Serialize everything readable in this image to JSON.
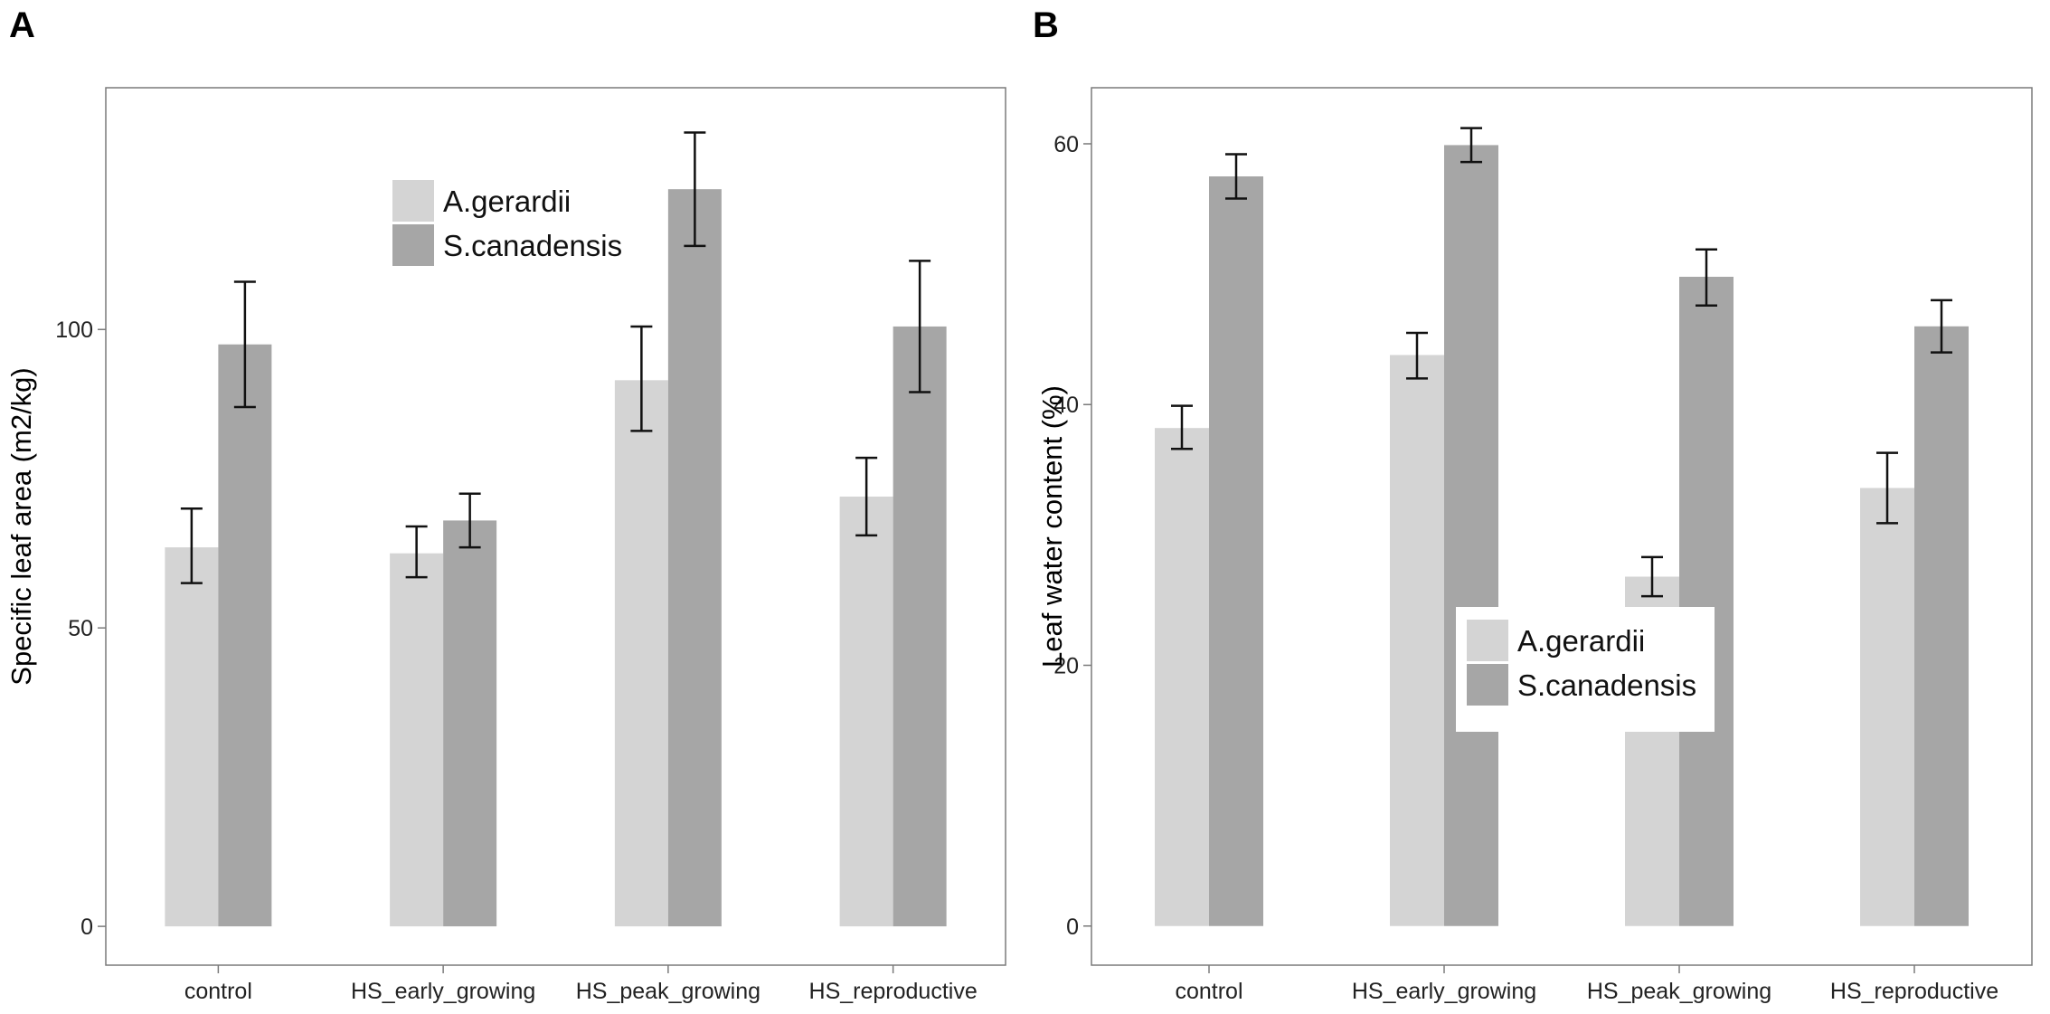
{
  "chart_data": [
    {
      "panel": "A",
      "type": "bar",
      "ylabel": "Specific leaf area (m2/kg)",
      "xlabel": "",
      "ylim": [
        -6.5,
        140.5
      ],
      "yticks": [
        0,
        50,
        100
      ],
      "grid": false,
      "legend_position": "top-center",
      "categories": [
        "control",
        "HS_early_growing",
        "HS_peak_growing",
        "HS_reproductive"
      ],
      "series": [
        {
          "name": "A.gerardii",
          "values": [
            63.5,
            62.5,
            91.5,
            72.0
          ],
          "err_low": [
            57.5,
            58.5,
            83.0,
            65.5
          ],
          "err_high": [
            70.0,
            67.0,
            100.5,
            78.5
          ]
        },
        {
          "name": "S.canadensis",
          "values": [
            97.5,
            68.0,
            123.5,
            100.5
          ],
          "err_low": [
            87.0,
            63.5,
            114.0,
            89.5
          ],
          "err_high": [
            108.0,
            72.5,
            133.0,
            111.5
          ]
        }
      ]
    },
    {
      "panel": "B",
      "type": "bar",
      "ylabel": "Leaf water content (%)",
      "xlabel": "",
      "ylim": [
        -3.0,
        64.3
      ],
      "yticks": [
        0,
        20,
        40,
        60
      ],
      "grid": false,
      "legend_position": "center-right",
      "categories": [
        "control",
        "HS_early_growing",
        "HS_peak_growing",
        "HS_reproductive"
      ],
      "series": [
        {
          "name": "A.gerardii",
          "values": [
            38.2,
            43.8,
            26.8,
            33.6
          ],
          "err_low": [
            36.6,
            42.0,
            25.3,
            30.9
          ],
          "err_high": [
            39.9,
            45.5,
            28.3,
            36.3
          ]
        },
        {
          "name": "S.canadensis",
          "values": [
            57.5,
            59.9,
            49.8,
            46.0
          ],
          "err_low": [
            55.8,
            58.6,
            47.6,
            44.0
          ],
          "err_high": [
            59.2,
            61.2,
            51.9,
            48.0
          ]
        }
      ]
    }
  ],
  "panels": [
    {
      "letter": "A"
    },
    {
      "letter": "B"
    }
  ],
  "colors": {
    "series1": "#d4d4d4",
    "series2": "#a6a6a6",
    "frame": "#7a7a7a",
    "errorbar": "#111111"
  }
}
